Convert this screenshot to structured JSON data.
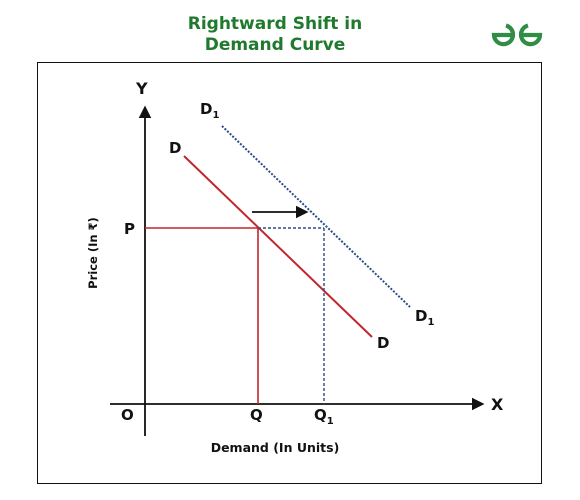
{
  "title": {
    "line1": "Rightward Shift in",
    "line2": "Demand Curve"
  },
  "logo": {
    "icon": "geeksforgeeks-logo-icon",
    "color": "#2f8d46"
  },
  "axes": {
    "y_axis_letter": "Y",
    "x_axis_letter": "X",
    "origin": "O",
    "y_label": "Price (In ₹)",
    "x_label": "Demand (In Units)"
  },
  "points": {
    "p_label": "P",
    "q_label": "Q",
    "q1_label": "Q",
    "q1_subscript": "1"
  },
  "curves": {
    "original": {
      "label": "D",
      "color": "#c0272d"
    },
    "shifted": {
      "label": "D",
      "subscript": "1",
      "color": "#2b4a8a"
    }
  },
  "arrow": {
    "meaning": "shift-right-arrow",
    "color": "#000000"
  }
}
